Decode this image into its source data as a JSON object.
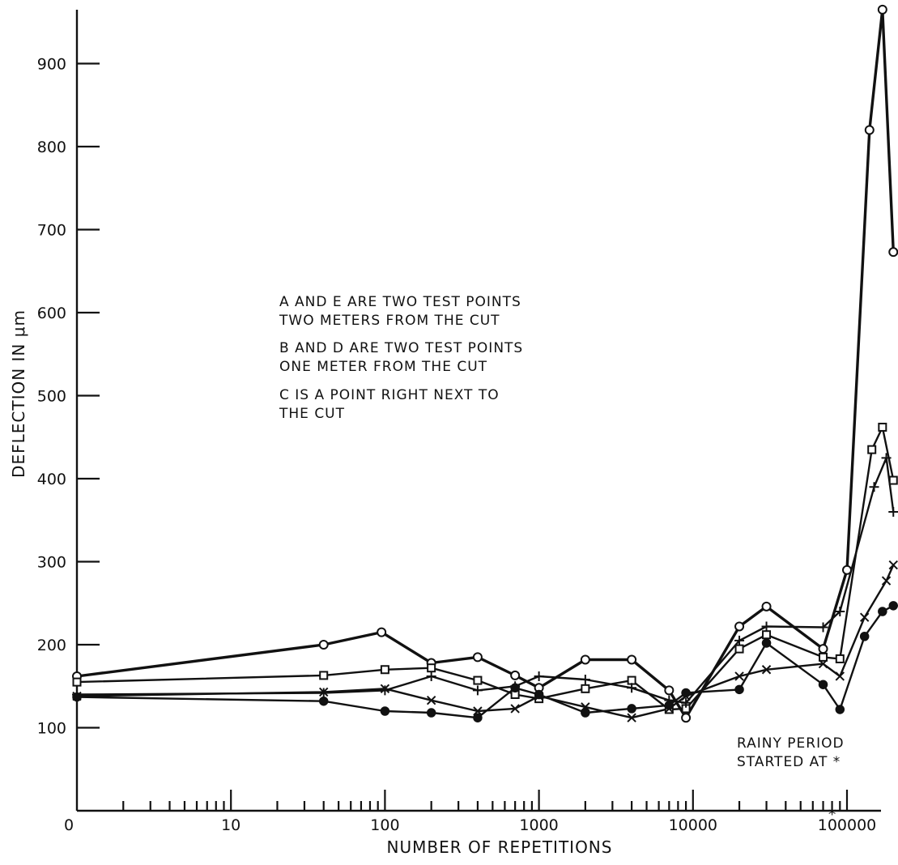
{
  "chart_data": {
    "type": "line",
    "title": "",
    "xlabel": "NUMBER OF REPETITIONS",
    "ylabel": "DEFLECTION IN μm",
    "x_scale": "log",
    "x_ticks": [
      "0",
      "10",
      "100",
      "1000",
      "10000",
      "100000"
    ],
    "y_ticks": [
      "100",
      "200",
      "300",
      "400",
      "500",
      "600",
      "700",
      "800",
      "900"
    ],
    "ylim": [
      0,
      960
    ],
    "grid": false,
    "x_marker": {
      "label": "*",
      "x": 80000
    },
    "annotations": [
      [
        "A AND E  ARE TWO TEST POINTS",
        "TWO METERS FROM THE CUT"
      ],
      [
        "B AND D  ARE TWO TEST POINTS",
        "ONE METER FROM THE CUT"
      ],
      [
        "C IS A POINT RIGHT NEXT TO",
        "THE CUT"
      ],
      [
        "RAINY PERIOD",
        "STARTED AT *"
      ]
    ],
    "series": [
      {
        "name": "C",
        "marker": "open-circle",
        "heavy": true,
        "points": [
          [
            1,
            162
          ],
          [
            40,
            200
          ],
          [
            95,
            215
          ],
          [
            200,
            178
          ],
          [
            400,
            185
          ],
          [
            700,
            163
          ],
          [
            1000,
            148
          ],
          [
            2000,
            182
          ],
          [
            4000,
            182
          ],
          [
            7000,
            145
          ],
          [
            9000,
            112
          ],
          [
            20000,
            222
          ],
          [
            30000,
            246
          ],
          [
            70000,
            195
          ],
          [
            100000,
            290
          ],
          [
            140000,
            820
          ],
          [
            170000,
            965
          ],
          [
            200000,
            673
          ]
        ]
      },
      {
        "name": "D",
        "marker": "open-square",
        "points": [
          [
            1,
            155
          ],
          [
            40,
            163
          ],
          [
            100,
            170
          ],
          [
            200,
            172
          ],
          [
            400,
            157
          ],
          [
            700,
            140
          ],
          [
            1000,
            135
          ],
          [
            2000,
            147
          ],
          [
            4000,
            157
          ],
          [
            7000,
            122
          ],
          [
            9000,
            123
          ],
          [
            20000,
            195
          ],
          [
            30000,
            212
          ],
          [
            70000,
            185
          ],
          [
            90000,
            183
          ],
          [
            145000,
            435
          ],
          [
            170000,
            462
          ],
          [
            200000,
            398
          ]
        ]
      },
      {
        "name": "E",
        "marker": "plus",
        "points": [
          [
            1,
            140
          ],
          [
            40,
            142
          ],
          [
            100,
            145
          ],
          [
            200,
            162
          ],
          [
            400,
            145
          ],
          [
            700,
            150
          ],
          [
            1000,
            162
          ],
          [
            2000,
            158
          ],
          [
            4000,
            148
          ],
          [
            7000,
            133
          ],
          [
            9000,
            130
          ],
          [
            20000,
            205
          ],
          [
            30000,
            222
          ],
          [
            70000,
            221
          ],
          [
            90000,
            240
          ],
          [
            150000,
            390
          ],
          [
            180000,
            425
          ],
          [
            200000,
            360
          ]
        ]
      },
      {
        "name": "B",
        "marker": "x",
        "points": [
          [
            1,
            138
          ],
          [
            40,
            143
          ],
          [
            100,
            147
          ],
          [
            200,
            133
          ],
          [
            400,
            120
          ],
          [
            700,
            123
          ],
          [
            1000,
            138
          ],
          [
            2000,
            125
          ],
          [
            4000,
            112
          ],
          [
            7000,
            123
          ],
          [
            9000,
            138
          ],
          [
            20000,
            162
          ],
          [
            30000,
            170
          ],
          [
            70000,
            177
          ],
          [
            90000,
            162
          ],
          [
            130000,
            233
          ],
          [
            180000,
            277
          ],
          [
            200000,
            296
          ]
        ]
      },
      {
        "name": "A",
        "marker": "filled-circle",
        "points": [
          [
            1,
            137
          ],
          [
            40,
            132
          ],
          [
            100,
            120
          ],
          [
            200,
            118
          ],
          [
            400,
            112
          ],
          [
            700,
            148
          ],
          [
            1000,
            140
          ],
          [
            2000,
            118
          ],
          [
            4000,
            123
          ],
          [
            7000,
            127
          ],
          [
            9000,
            142
          ],
          [
            20000,
            146
          ],
          [
            30000,
            202
          ],
          [
            70000,
            152
          ],
          [
            90000,
            122
          ],
          [
            130000,
            210
          ],
          [
            170000,
            240
          ],
          [
            200000,
            247
          ]
        ]
      }
    ]
  }
}
